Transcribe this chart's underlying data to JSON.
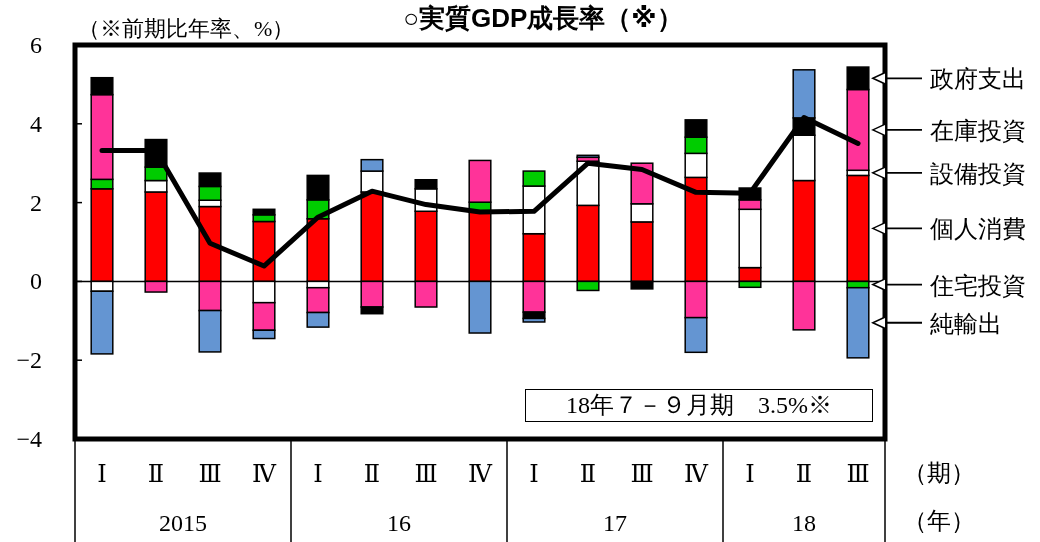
{
  "chart_data": {
    "type": "bar",
    "title": "○実質GDP成長率（※）",
    "ylabel": "（※前期比年率、%）",
    "xlabel": "（期）",
    "categories": [
      "Ⅰ",
      "Ⅱ",
      "Ⅲ",
      "Ⅳ",
      "Ⅰ",
      "Ⅱ",
      "Ⅲ",
      "Ⅳ",
      "Ⅰ",
      "Ⅱ",
      "Ⅲ",
      "Ⅳ",
      "Ⅰ",
      "Ⅱ",
      "Ⅲ"
    ],
    "stacked": true,
    "ylim": [
      -4,
      6
    ],
    "yticks": [
      -4,
      -2,
      0,
      2,
      4,
      6
    ],
    "legend": "right",
    "annotations": [
      "18年７－９月期　3.5%※",
      "2015",
      "16",
      "17",
      "18",
      "（年）"
    ],
    "series": [
      {
        "name": "個人消費",
        "color": "#ff0000",
        "values": [
          2.35,
          2.27,
          1.9,
          1.52,
          1.59,
          2.27,
          1.78,
          1.76,
          1.21,
          1.93,
          1.51,
          2.64,
          0.35,
          2.56,
          2.69
        ]
      },
      {
        "name": "設備投資",
        "color": "#ffffff",
        "values": [
          -0.25,
          0.29,
          0.16,
          -0.54,
          -0.16,
          0.53,
          0.57,
          null,
          1.21,
          1.12,
          0.46,
          0.61,
          1.48,
          1.15,
          0.13
        ]
      },
      {
        "name": "住宅投資",
        "color": "#00cc00",
        "values": [
          0.24,
          0.34,
          0.35,
          0.17,
          0.48,
          null,
          null,
          0.25,
          0.38,
          -0.23,
          null,
          0.41,
          -0.15,
          null,
          -0.16
        ]
      },
      {
        "name": "在庫投資",
        "color": "#ff3399",
        "values": [
          2.15,
          -0.27,
          -0.74,
          -0.7,
          -0.63,
          -0.65,
          -0.65,
          1.06,
          -0.78,
          0.1,
          1.03,
          -0.92,
          0.24,
          -1.23,
          2.05
        ]
      },
      {
        "name": "政府支出",
        "color": "#000000",
        "values": [
          0.43,
          0.7,
          0.34,
          0.14,
          0.62,
          -0.17,
          0.23,
          null,
          -0.16,
          null,
          -0.19,
          0.44,
          0.3,
          0.44,
          0.57
        ]
      },
      {
        "name": "純輸出",
        "color": "#6495d2",
        "values": [
          -1.59,
          null,
          -1.05,
          -0.21,
          -0.37,
          0.29,
          null,
          -1.31,
          -0.09,
          0.05,
          null,
          -0.88,
          null,
          1.22,
          -1.78
        ]
      },
      {
        "type": "line",
        "color": "#000000",
        "values": [
          3.32,
          3.32,
          0.97,
          0.39,
          1.63,
          2.29,
          1.95,
          1.76,
          1.78,
          3.0,
          2.84,
          2.26,
          2.24,
          4.16,
          3.5
        ]
      }
    ]
  }
}
